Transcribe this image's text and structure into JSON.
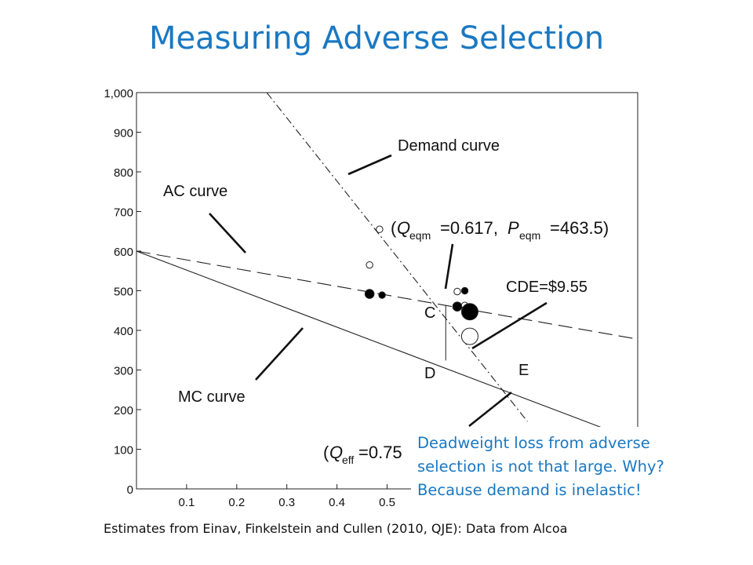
{
  "page": {
    "title": "Measuring Adverse Selection",
    "callout_lines": [
      "Deadweight loss from adverse",
      "selection is not that large. Why?",
      "Because demand is inelastic!"
    ],
    "caption": "Estimates from Einav, Finkelstein and Cullen (2010, QJE): Data from Alcoa"
  },
  "chart_data": {
    "type": "line",
    "xlim": [
      0,
      1
    ],
    "ylim": [
      0,
      1000
    ],
    "x_ticks": [
      0.1,
      0.2,
      0.3,
      0.4,
      0.5
    ],
    "x_tick_labels": [
      "0.1",
      "0.2",
      "0.3",
      "0.4",
      "0.5"
    ],
    "y_ticks": [
      0,
      100,
      200,
      300,
      400,
      500,
      600,
      700,
      800,
      900,
      1000
    ],
    "y_tick_labels": [
      "0",
      "100",
      "200",
      "300",
      "400",
      "500",
      "600",
      "700",
      "800",
      "900",
      "1,000"
    ],
    "series": [
      {
        "name": "Demand curve",
        "style": "dash-dot",
        "x": [
          0.26,
          0.78
        ],
        "y": [
          1000,
          170
        ]
      },
      {
        "name": "AC curve",
        "style": "dashed",
        "x": [
          0,
          0.99
        ],
        "y": [
          600,
          380
        ]
      },
      {
        "name": "MC curve",
        "style": "solid",
        "x": [
          0,
          0.99
        ],
        "y": [
          600,
          125
        ]
      }
    ],
    "points": [
      {
        "x": 0.485,
        "y": 655,
        "filled": false,
        "size": "small"
      },
      {
        "x": 0.465,
        "y": 565,
        "filled": false,
        "size": "small"
      },
      {
        "x": 0.465,
        "y": 492,
        "filled": true,
        "size": "medium"
      },
      {
        "x": 0.49,
        "y": 489,
        "filled": true,
        "size": "small"
      },
      {
        "x": 0.64,
        "y": 498,
        "filled": false,
        "size": "small"
      },
      {
        "x": 0.655,
        "y": 500,
        "filled": true,
        "size": "small"
      },
      {
        "x": 0.64,
        "y": 460,
        "filled": true,
        "size": "medium"
      },
      {
        "x": 0.655,
        "y": 463,
        "filled": false,
        "size": "small"
      },
      {
        "x": 0.665,
        "y": 447,
        "filled": true,
        "size": "large"
      },
      {
        "x": 0.665,
        "y": 385,
        "filled": false,
        "size": "large"
      }
    ],
    "segment_CD": {
      "x": 0.617,
      "y_top": 463.5,
      "y_bottom": 324
    },
    "labels": {
      "demand": "Demand curve",
      "ac": "AC curve",
      "mc": "MC curve",
      "C": "C",
      "D": "D",
      "E": "E",
      "cde": "CDE=$9.55",
      "q": "Q",
      "p": "P",
      "eqm": "eqm",
      "eff": "eff",
      "eqm_q_value": "=0.617,",
      "eqm_p_value": "=463.5)",
      "eff_q_value": "=0.75",
      "open_paren": "("
    }
  }
}
